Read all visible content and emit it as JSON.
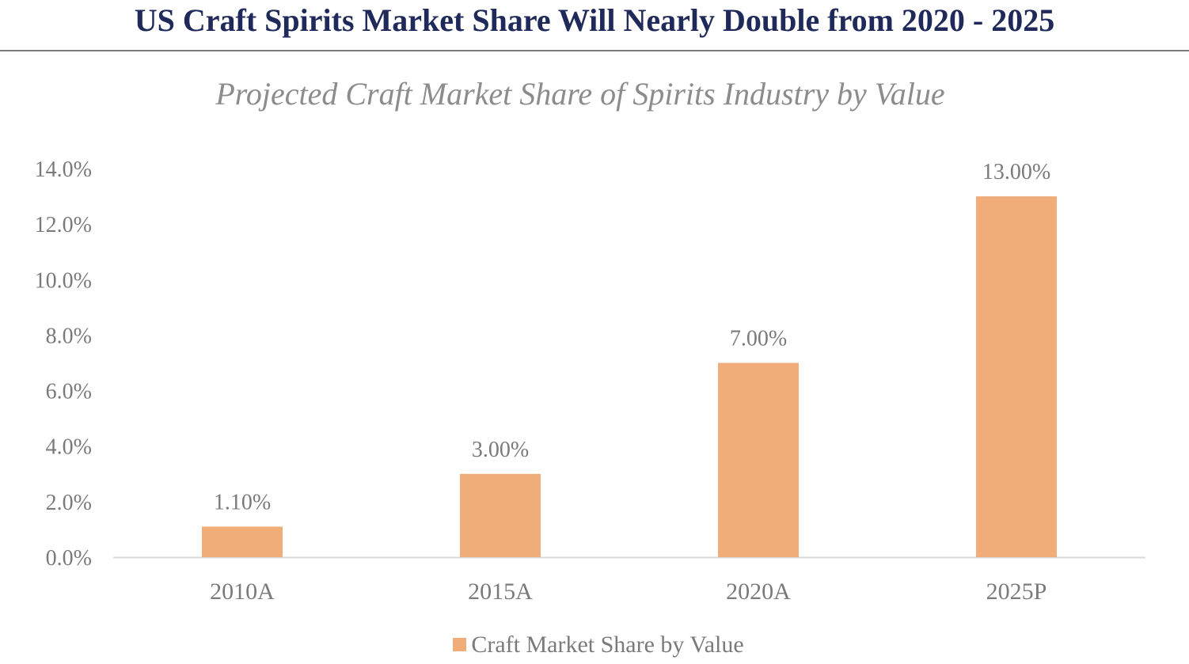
{
  "header": {
    "title": "US Craft Spirits Market Share Will Nearly Double from 2020 - 2025"
  },
  "chart_data": {
    "type": "bar",
    "title": "Projected Craft Market Share of Spirits Industry by Value",
    "xlabel": "",
    "ylabel": "",
    "categories": [
      "2010A",
      "2015A",
      "2020A",
      "2025P"
    ],
    "series": [
      {
        "name": "Craft Market Share by Value",
        "values": [
          1.1,
          3.0,
          7.0,
          13.0
        ],
        "labels": [
          "1.10%",
          "3.00%",
          "7.00%",
          "13.00%"
        ],
        "color": "#f0ad7a"
      }
    ],
    "ylim": [
      0,
      14
    ],
    "yticks": [
      0,
      2,
      4,
      6,
      8,
      10,
      12,
      14
    ],
    "ytick_labels": [
      "0.0%",
      "2.0%",
      "4.0%",
      "6.0%",
      "8.0%",
      "10.0%",
      "12.0%",
      "14.0%"
    ],
    "grid": false,
    "legend_position": "bottom"
  },
  "colors": {
    "title": "#1f2a5a",
    "axis_text": "#7a7a7a",
    "bar": "#f0ad7a",
    "axis_line": "#d9d9d9"
  }
}
